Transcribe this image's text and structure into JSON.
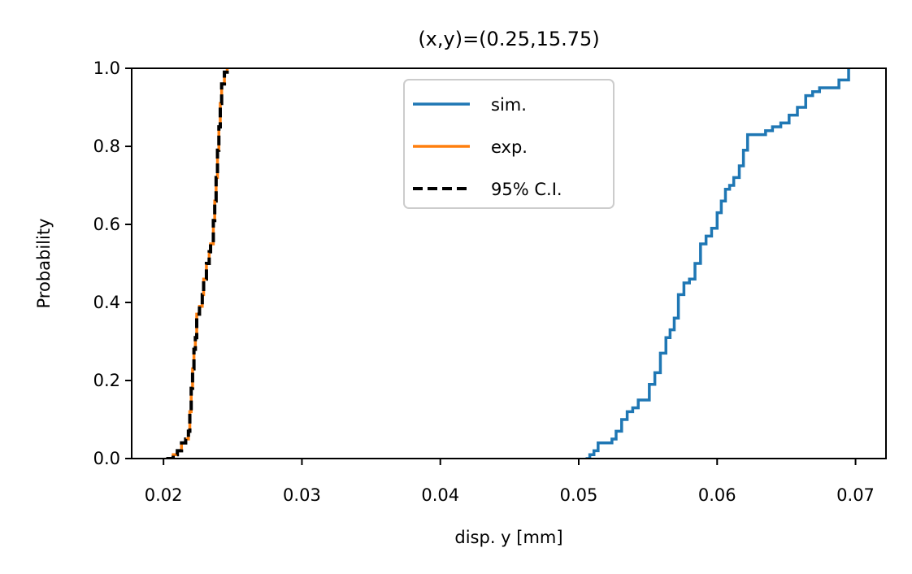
{
  "chart_data": {
    "type": "line",
    "title": "(x,y)=(0.25,15.75)",
    "xlabel": "disp. y [mm]",
    "ylabel": "Probability",
    "xlim": [
      0.0177,
      0.0722
    ],
    "ylim": [
      0.0,
      1.0
    ],
    "xticks": [
      0.02,
      0.03,
      0.04,
      0.05,
      0.06,
      0.07
    ],
    "xtick_labels": [
      "0.02",
      "0.03",
      "0.04",
      "0.05",
      "0.06",
      "0.07"
    ],
    "yticks": [
      0.0,
      0.2,
      0.4,
      0.6,
      0.8,
      1.0
    ],
    "ytick_labels": [
      "0.0",
      "0.2",
      "0.4",
      "0.6",
      "0.8",
      "1.0"
    ],
    "grid": false,
    "legend_position": "top-center",
    "series": [
      {
        "name": "sim.",
        "color": "#1f77b4",
        "style": "solid",
        "x": [
          0.0505,
          0.0508,
          0.0511,
          0.0514,
          0.0518,
          0.0524,
          0.0527,
          0.0531,
          0.0535,
          0.0539,
          0.0543,
          0.0547,
          0.0551,
          0.0555,
          0.0559,
          0.0563,
          0.0566,
          0.0569,
          0.0572,
          0.0576,
          0.058,
          0.0584,
          0.0588,
          0.0592,
          0.0596,
          0.06,
          0.0603,
          0.0606,
          0.0609,
          0.0612,
          0.0616,
          0.0619,
          0.0622,
          0.063,
          0.0635,
          0.064,
          0.0646,
          0.0652,
          0.0658,
          0.0664,
          0.0669,
          0.0674,
          0.068,
          0.0688,
          0.0695
        ],
        "y": [
          0.0,
          0.01,
          0.02,
          0.04,
          0.04,
          0.05,
          0.07,
          0.1,
          0.12,
          0.13,
          0.15,
          0.15,
          0.19,
          0.22,
          0.27,
          0.31,
          0.33,
          0.36,
          0.42,
          0.45,
          0.46,
          0.5,
          0.55,
          0.57,
          0.59,
          0.63,
          0.66,
          0.69,
          0.7,
          0.72,
          0.75,
          0.79,
          0.83,
          0.83,
          0.84,
          0.85,
          0.86,
          0.88,
          0.9,
          0.93,
          0.94,
          0.95,
          0.95,
          0.97,
          1.0
        ]
      },
      {
        "name": "exp.",
        "color": "#ff7f0e",
        "style": "solid",
        "x": [
          0.0202,
          0.0207,
          0.021,
          0.0213,
          0.0216,
          0.0218,
          0.0219,
          0.022,
          0.0221,
          0.0222,
          0.0223,
          0.0224,
          0.0226,
          0.0228,
          0.0229,
          0.0231,
          0.0233,
          0.0234,
          0.0236,
          0.0237,
          0.0238,
          0.0239,
          0.024,
          0.0241,
          0.0242,
          0.0244,
          0.0246
        ],
        "y": [
          0.0,
          0.01,
          0.02,
          0.04,
          0.05,
          0.07,
          0.12,
          0.18,
          0.23,
          0.28,
          0.31,
          0.37,
          0.39,
          0.42,
          0.46,
          0.5,
          0.53,
          0.55,
          0.61,
          0.66,
          0.72,
          0.79,
          0.85,
          0.91,
          0.96,
          0.99,
          1.0
        ]
      },
      {
        "name": "95% C.I.",
        "color": "#000000",
        "style": "dashed",
        "x": [
          0.0202,
          0.0207,
          0.021,
          0.0213,
          0.0216,
          0.0218,
          0.0219,
          0.022,
          0.0221,
          0.0222,
          0.0223,
          0.0224,
          0.0226,
          0.0228,
          0.0229,
          0.0231,
          0.0233,
          0.0234,
          0.0236,
          0.0237,
          0.0238,
          0.0239,
          0.024,
          0.0241,
          0.0242,
          0.0244,
          0.0246
        ],
        "y": [
          0.0,
          0.01,
          0.02,
          0.04,
          0.05,
          0.07,
          0.12,
          0.18,
          0.23,
          0.28,
          0.31,
          0.37,
          0.39,
          0.42,
          0.46,
          0.5,
          0.53,
          0.55,
          0.61,
          0.66,
          0.72,
          0.79,
          0.85,
          0.91,
          0.96,
          0.99,
          1.0
        ]
      }
    ]
  }
}
